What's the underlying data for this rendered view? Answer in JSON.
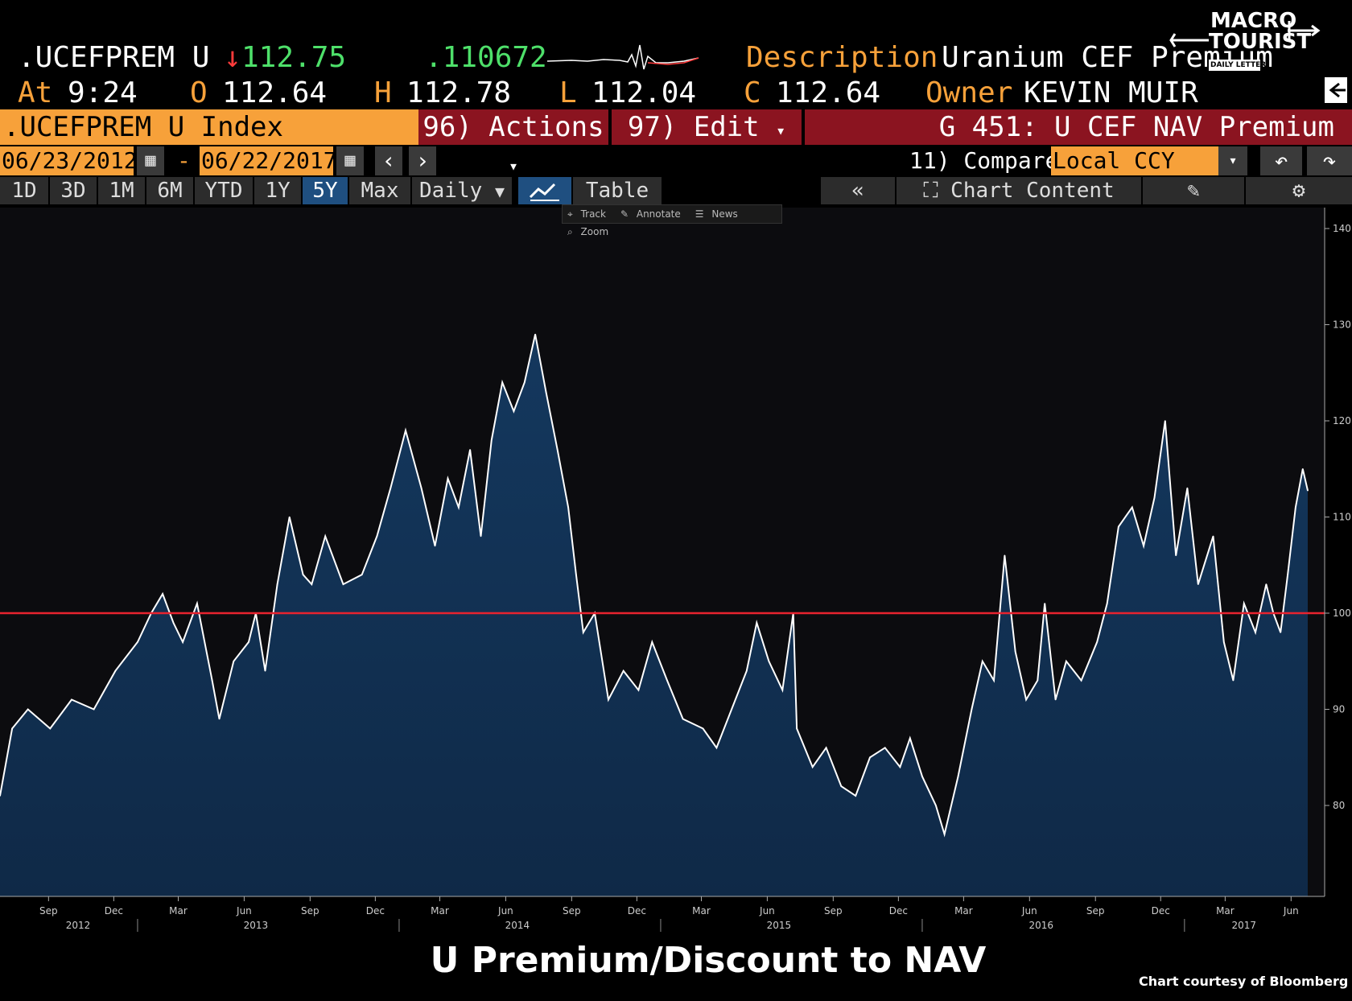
{
  "header": {
    "ticker": ".UCEFPREM U",
    "last_arrow": "↓",
    "last": "112.75",
    "change": ".110672",
    "description_label": "Description",
    "description_value": "Uranium CEF Premium",
    "at_label": "At",
    "time": "9:24",
    "open_label": "O",
    "open": "112.64",
    "high_label": "H",
    "high": "112.78",
    "low_label": "L",
    "low": "112.04",
    "close_label": "C",
    "close": "112.64",
    "owner_label": "Owner",
    "owner": "KEVIN MUIR"
  },
  "logo": {
    "line1": "MACRO",
    "line2": "TOURIST",
    "line3": "DAILY LETTER"
  },
  "menubar": {
    "security": ".UCEFPREM U Index",
    "actions": "96) Actions",
    "edit": "97) Edit",
    "chart_name": "G 451: U CEF NAV Premium"
  },
  "datebar": {
    "start_date": "06/23/2012",
    "separator": "-",
    "end_date": "06/22/2017",
    "compare": "11) Compare",
    "currency": "Local CCY"
  },
  "tabs": {
    "periods": [
      "1D",
      "3D",
      "1M",
      "6M",
      "YTD",
      "1Y",
      "5Y",
      "Max"
    ],
    "active_period": "5Y",
    "frequency": "Daily",
    "table": "Table",
    "chart_content": "Chart Content"
  },
  "toolstrip": {
    "track": "Track",
    "annotate": "Annotate",
    "news": "News",
    "zoom": "Zoom"
  },
  "colors": {
    "area_fill": "#0f2947",
    "line": "#ffffff",
    "reference_line": "#e8232f",
    "orange": "#f7a13a",
    "menu_red": "#8b1420"
  },
  "chart_data": {
    "type": "area",
    "ylim": [
      70,
      141
    ],
    "yticks": [
      80,
      90,
      100,
      110,
      120,
      130,
      140
    ],
    "reference_line": 100,
    "x_month_labels": [
      "Sep",
      "Dec",
      "Mar",
      "Jun",
      "Sep",
      "Dec",
      "Mar",
      "Jun",
      "Sep",
      "Dec",
      "Mar",
      "Jun",
      "Sep",
      "Dec",
      "Mar",
      "Jun",
      "Sep",
      "Dec",
      "Mar",
      "Jun"
    ],
    "x_year_labels": [
      "2012",
      "2013",
      "2014",
      "2015",
      "2016",
      "2017"
    ],
    "x_start": "2012-06-23",
    "x_end": "2017-06-22",
    "points": [
      [
        "2012-06-23",
        81
      ],
      [
        "2012-07-10",
        88
      ],
      [
        "2012-08-01",
        90
      ],
      [
        "2012-09-01",
        88
      ],
      [
        "2012-10-01",
        91
      ],
      [
        "2012-11-01",
        90
      ],
      [
        "2012-12-01",
        94
      ],
      [
        "2013-01-01",
        97
      ],
      [
        "2013-01-20",
        100
      ],
      [
        "2013-02-05",
        102
      ],
      [
        "2013-02-20",
        99
      ],
      [
        "2013-03-05",
        97
      ],
      [
        "2013-03-25",
        101
      ],
      [
        "2013-04-15",
        93
      ],
      [
        "2013-04-25",
        89
      ],
      [
        "2013-05-15",
        95
      ],
      [
        "2013-06-05",
        97
      ],
      [
        "2013-06-15",
        100
      ],
      [
        "2013-06-28",
        94
      ],
      [
        "2013-07-15",
        103
      ],
      [
        "2013-08-01",
        110
      ],
      [
        "2013-08-20",
        104
      ],
      [
        "2013-09-01",
        103
      ],
      [
        "2013-09-20",
        108
      ],
      [
        "2013-10-15",
        103
      ],
      [
        "2013-11-10",
        104
      ],
      [
        "2013-12-01",
        108
      ],
      [
        "2013-12-20",
        113
      ],
      [
        "2014-01-10",
        119
      ],
      [
        "2014-02-01",
        113
      ],
      [
        "2014-02-20",
        107
      ],
      [
        "2014-03-10",
        114
      ],
      [
        "2014-03-25",
        111
      ],
      [
        "2014-04-10",
        117
      ],
      [
        "2014-04-25",
        108
      ],
      [
        "2014-05-10",
        118
      ],
      [
        "2014-05-25",
        124
      ],
      [
        "2014-06-10",
        121
      ],
      [
        "2014-06-25",
        124
      ],
      [
        "2014-07-10",
        129
      ],
      [
        "2014-07-25",
        123
      ],
      [
        "2014-08-10",
        117
      ],
      [
        "2014-08-25",
        111
      ],
      [
        "2014-09-05",
        104
      ],
      [
        "2014-09-15",
        98
      ],
      [
        "2014-10-01",
        100
      ],
      [
        "2014-10-20",
        91
      ],
      [
        "2014-11-10",
        94
      ],
      [
        "2014-12-01",
        92
      ],
      [
        "2014-12-20",
        97
      ],
      [
        "2015-01-10",
        93
      ],
      [
        "2015-02-01",
        89
      ],
      [
        "2015-03-01",
        88
      ],
      [
        "2015-03-20",
        86
      ],
      [
        "2015-04-10",
        90
      ],
      [
        "2015-05-01",
        94
      ],
      [
        "2015-05-15",
        99
      ],
      [
        "2015-06-01",
        95
      ],
      [
        "2015-06-20",
        92
      ],
      [
        "2015-07-05",
        100
      ],
      [
        "2015-07-10",
        88
      ],
      [
        "2015-08-01",
        84
      ],
      [
        "2015-08-20",
        86
      ],
      [
        "2015-09-10",
        82
      ],
      [
        "2015-09-30",
        81
      ],
      [
        "2015-10-20",
        85
      ],
      [
        "2015-11-10",
        86
      ],
      [
        "2015-12-01",
        84
      ],
      [
        "2015-12-15",
        87
      ],
      [
        "2016-01-01",
        83
      ],
      [
        "2016-01-20",
        80
      ],
      [
        "2016-02-01",
        77
      ],
      [
        "2016-02-20",
        83
      ],
      [
        "2016-03-10",
        90
      ],
      [
        "2016-03-25",
        95
      ],
      [
        "2016-04-10",
        93
      ],
      [
        "2016-04-25",
        106
      ],
      [
        "2016-05-10",
        96
      ],
      [
        "2016-05-25",
        91
      ],
      [
        "2016-06-10",
        93
      ],
      [
        "2016-06-20",
        101
      ],
      [
        "2016-07-05",
        91
      ],
      [
        "2016-07-20",
        95
      ],
      [
        "2016-08-10",
        93
      ],
      [
        "2016-09-01",
        97
      ],
      [
        "2016-09-15",
        101
      ],
      [
        "2016-10-01",
        109
      ],
      [
        "2016-10-20",
        111
      ],
      [
        "2016-11-05",
        107
      ],
      [
        "2016-11-20",
        112
      ],
      [
        "2016-12-05",
        120
      ],
      [
        "2016-12-20",
        106
      ],
      [
        "2017-01-05",
        113
      ],
      [
        "2017-01-20",
        103
      ],
      [
        "2017-02-10",
        108
      ],
      [
        "2017-02-25",
        97
      ],
      [
        "2017-03-10",
        93
      ],
      [
        "2017-03-25",
        101
      ],
      [
        "2017-04-10",
        98
      ],
      [
        "2017-04-25",
        103
      ],
      [
        "2017-05-05",
        100
      ],
      [
        "2017-05-15",
        98
      ],
      [
        "2017-05-25",
        104
      ],
      [
        "2017-06-05",
        111
      ],
      [
        "2017-06-15",
        115
      ],
      [
        "2017-06-22",
        112.75
      ]
    ]
  },
  "caption": "U Premium/Discount to NAV",
  "credit": "Chart courtesy of Bloomberg"
}
